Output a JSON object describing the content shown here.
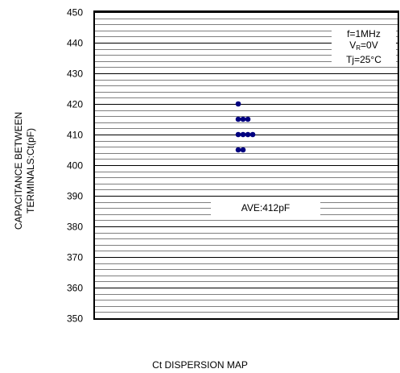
{
  "chart_data": {
    "type": "scatter",
    "title": "",
    "xlabel": "Ct DISPERSION MAP",
    "ylabel_lines": [
      "CAPACITANCE BETWEEN",
      "TERMINALS:Ct(pF)"
    ],
    "ylim": [
      350,
      450
    ],
    "y_ticks": [
      "450",
      "440",
      "430",
      "420",
      "410",
      "400",
      "390",
      "380",
      "370",
      "360",
      "350"
    ],
    "grid": true,
    "conditions": {
      "frequency": "f=1MHz",
      "vr_prefix": "V",
      "vr_sub": "R",
      "vr_value": "=0V",
      "tj": "Tj=25°C"
    },
    "average_label": "AVE:412pF",
    "points": [
      {
        "y": 420,
        "count": 1
      },
      {
        "y": 415,
        "count": 3
      },
      {
        "y": 410,
        "count": 4
      },
      {
        "y": 405,
        "count": 2
      }
    ],
    "colors": {
      "point": "#000080",
      "grid": "#000000"
    }
  }
}
